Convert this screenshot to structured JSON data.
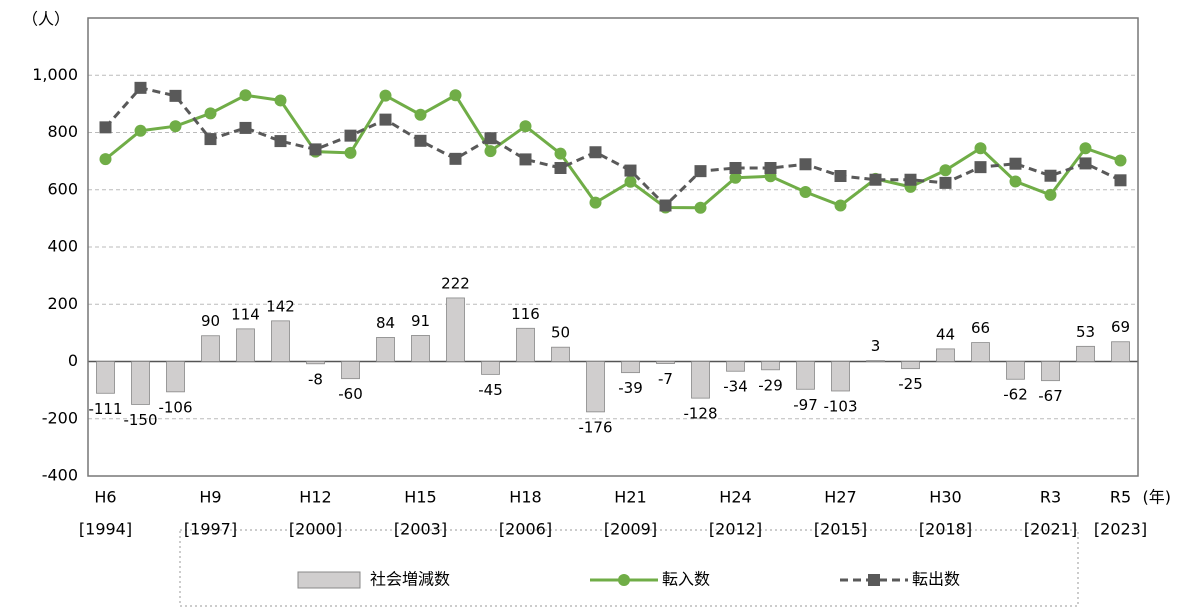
{
  "chart_data": {
    "type": "bar_line",
    "y_axis_label": "（人）",
    "x_axis_unit": "(年)",
    "categories": [
      "H6",
      null,
      null,
      "H9",
      null,
      null,
      "H12",
      null,
      null,
      "H15",
      null,
      null,
      "H18",
      null,
      null,
      "H21",
      null,
      null,
      "H24",
      null,
      null,
      "H27",
      null,
      null,
      "H30",
      null,
      null,
      "R3",
      null,
      "R5"
    ],
    "category_sublabels": [
      "[1994]",
      null,
      null,
      "[1997]",
      null,
      null,
      "[2000]",
      null,
      null,
      "[2003]",
      null,
      null,
      "[2006]",
      null,
      null,
      "[2009]",
      null,
      null,
      "[2012]",
      null,
      null,
      "[2015]",
      null,
      null,
      "[2018]",
      null,
      null,
      "[2021]",
      null,
      "[2023]"
    ],
    "series": [
      {
        "name": "社会増減数",
        "kind": "bar",
        "color": "#d0cece",
        "values": [
          -111,
          -150,
          -106,
          90,
          114,
          142,
          -8,
          -60,
          84,
          91,
          222,
          -45,
          116,
          50,
          -176,
          -39,
          -7,
          -128,
          -34,
          -29,
          -97,
          -103,
          3,
          -25,
          44,
          66,
          -62,
          -67,
          53,
          69
        ]
      },
      {
        "name": "転入数",
        "kind": "line",
        "marker": "circle",
        "color": "#70ad47",
        "values": [
          707,
          806,
          822,
          867,
          930,
          912,
          733,
          729,
          929,
          862,
          930,
          735,
          822,
          726,
          555,
          628,
          538,
          537,
          642,
          647,
          592,
          545,
          638,
          610,
          668,
          745,
          629,
          582,
          745,
          702
        ]
      },
      {
        "name": "転出数",
        "kind": "line",
        "marker": "square",
        "dashed": true,
        "color": "#595959",
        "values": [
          818,
          956,
          928,
          777,
          816,
          770,
          741,
          789,
          845,
          771,
          708,
          780,
          706,
          676,
          731,
          667,
          545,
          665,
          676,
          676,
          689,
          648,
          635,
          635,
          624,
          679,
          691,
          649,
          692,
          633
        ]
      }
    ],
    "negative_color": "#e00000",
    "ylim": [
      -400,
      1200
    ],
    "yticks": [
      -400,
      -200,
      0,
      200,
      400,
      600,
      800,
      {
        "value": 1000,
        "label": "1,000"
      }
    ],
    "grid": true,
    "legend": "bottom"
  }
}
